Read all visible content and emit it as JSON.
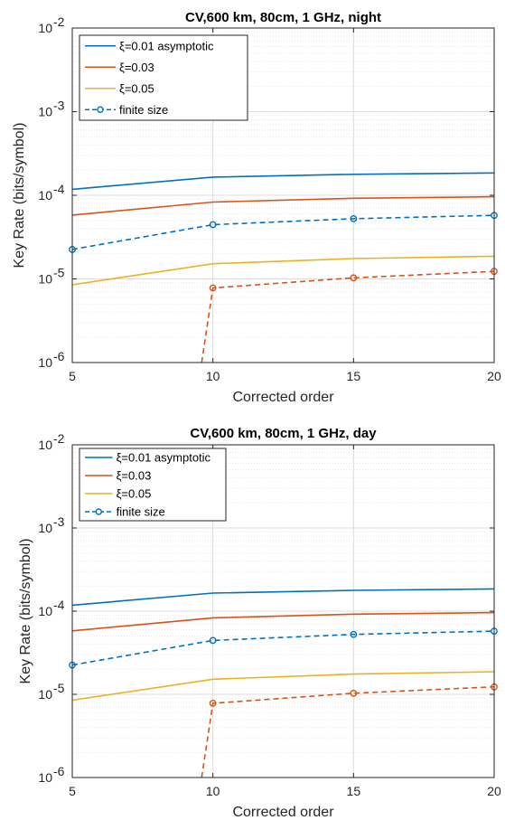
{
  "colors": {
    "xi001": "#0072BD",
    "xi003": "#D95319",
    "xi005": "#EDB120",
    "grid": "#dcdcdc",
    "axis": "#262626"
  },
  "chart_data": [
    {
      "type": "line",
      "title": "CV,600 km, 80cm, 1 GHz, night",
      "xlabel": "Corrected order",
      "ylabel": "Key Rate (bits/symbol)",
      "x_ticks": [
        "5",
        "10",
        "15",
        "20"
      ],
      "y_ticks": [
        {
          "base": "10",
          "exp": "-6"
        },
        {
          "base": "10",
          "exp": "-5"
        },
        {
          "base": "10",
          "exp": "-4"
        },
        {
          "base": "10",
          "exp": "-3"
        },
        {
          "base": "10",
          "exp": "-2"
        }
      ],
      "xlim": [
        5,
        20
      ],
      "ylim": [
        1e-06,
        0.01
      ],
      "yscale": "log",
      "grid": true,
      "legend_position": "top-left",
      "legend": [
        {
          "label": "ξ=0.01 asymptotic",
          "color": "#0072BD",
          "style": "solid"
        },
        {
          "label": "ξ=0.03",
          "color": "#D95319",
          "style": "solid"
        },
        {
          "label": "ξ=0.05",
          "color": "#EDB120",
          "style": "solid"
        },
        {
          "label": "finite size",
          "color": "#0072BD",
          "style": "dashed-marker"
        }
      ],
      "series": [
        {
          "color": "#0072BD",
          "style": "solid",
          "x": [
            5,
            10,
            15,
            20
          ],
          "y": [
            0.000118,
            0.000165,
            0.000178,
            0.000185
          ]
        },
        {
          "color": "#D95319",
          "style": "solid",
          "x": [
            5,
            10,
            15,
            20
          ],
          "y": [
            5.8e-05,
            8.3e-05,
            9.2e-05,
            9.6e-05
          ]
        },
        {
          "color": "#EDB120",
          "style": "solid",
          "x": [
            5,
            10,
            15,
            20
          ],
          "y": [
            8.5e-06,
            1.52e-05,
            1.75e-05,
            1.87e-05
          ]
        },
        {
          "color": "#0072BD",
          "style": "dashed",
          "markers": true,
          "x": [
            5,
            10,
            15,
            20
          ],
          "y": [
            2.25e-05,
            4.45e-05,
            5.25e-05,
            5.75e-05
          ]
        },
        {
          "color": "#D95319",
          "style": "dashed",
          "markers": true,
          "x": [
            9.6,
            10,
            15,
            20
          ],
          "y": [
            1e-06,
            7.8e-06,
            1.03e-05,
            1.23e-05
          ]
        }
      ]
    },
    {
      "type": "line",
      "title": "CV,600 km, 80cm, 1 GHz, day",
      "xlabel": "Corrected order",
      "ylabel": "Key Rate (bits/symbol)",
      "x_ticks": [
        "5",
        "10",
        "15",
        "20"
      ],
      "y_ticks": [
        {
          "base": "10",
          "exp": "-6"
        },
        {
          "base": "10",
          "exp": "-5"
        },
        {
          "base": "10",
          "exp": "-4"
        },
        {
          "base": "10",
          "exp": "-3"
        },
        {
          "base": "10",
          "exp": "-2"
        }
      ],
      "xlim": [
        5,
        20
      ],
      "ylim": [
        1e-06,
        0.01
      ],
      "yscale": "log",
      "grid": true,
      "legend_position": "top-left",
      "legend": [
        {
          "label": "ξ=0.01 asymptotic",
          "color": "#0072BD",
          "style": "solid"
        },
        {
          "label": "ξ=0.03",
          "color": "#D95319",
          "style": "solid"
        },
        {
          "label": "ξ=0.05",
          "color": "#EDB120",
          "style": "solid"
        },
        {
          "label": "finite size",
          "color": "#0072BD",
          "style": "dashed-marker"
        }
      ],
      "series": [
        {
          "color": "#0072BD",
          "style": "solid",
          "x": [
            5,
            10,
            15,
            20
          ],
          "y": [
            0.000118,
            0.000165,
            0.000178,
            0.000185
          ]
        },
        {
          "color": "#D95319",
          "style": "solid",
          "x": [
            5,
            10,
            15,
            20
          ],
          "y": [
            5.8e-05,
            8.3e-05,
            9.2e-05,
            9.6e-05
          ]
        },
        {
          "color": "#EDB120",
          "style": "solid",
          "x": [
            5,
            10,
            15,
            20
          ],
          "y": [
            8.5e-06,
            1.52e-05,
            1.75e-05,
            1.87e-05
          ]
        },
        {
          "color": "#0072BD",
          "style": "dashed",
          "markers": true,
          "x": [
            5,
            10,
            15,
            20
          ],
          "y": [
            2.25e-05,
            4.45e-05,
            5.25e-05,
            5.75e-05
          ]
        },
        {
          "color": "#D95319",
          "style": "dashed",
          "markers": true,
          "x": [
            9.6,
            10,
            15,
            20
          ],
          "y": [
            1e-06,
            7.8e-06,
            1.03e-05,
            1.23e-05
          ]
        }
      ]
    }
  ]
}
